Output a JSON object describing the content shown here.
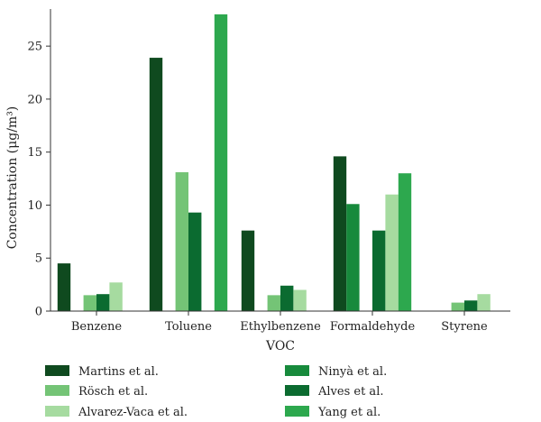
{
  "chart_data": {
    "type": "bar",
    "xlabel": "VOC",
    "ylabel": "Concentration (μg/m³)",
    "ylim": [
      0,
      28.5
    ],
    "yticks": [
      0,
      5,
      10,
      15,
      20,
      25
    ],
    "categories": [
      "Benzene",
      "Toluene",
      "Ethylbenzene",
      "Formaldehyde",
      "Styrene"
    ],
    "legend_position": "bottom",
    "series": [
      {
        "name": "Martins et al.",
        "color": "#0f4a1f",
        "values": [
          4.5,
          23.9,
          7.6,
          14.6,
          null
        ]
      },
      {
        "name": "Nіnyà et al.",
        "color": "#178a3c",
        "values": [
          null,
          null,
          null,
          10.1,
          null
        ]
      },
      {
        "name": "Rösch et al.",
        "color": "#74c476",
        "values": [
          1.5,
          13.1,
          1.5,
          null,
          0.8
        ]
      },
      {
        "name": "Alves et al.",
        "color": "#0b6b30",
        "values": [
          1.6,
          9.3,
          2.4,
          7.6,
          1.0
        ]
      },
      {
        "name": "Alvarez-Vaca et al.",
        "color": "#a6dba0",
        "values": [
          2.7,
          null,
          2.0,
          11.0,
          1.6
        ]
      },
      {
        "name": "Yang et al.",
        "color": "#2da84e",
        "values": [
          null,
          28.0,
          null,
          13.0,
          null
        ]
      }
    ]
  }
}
